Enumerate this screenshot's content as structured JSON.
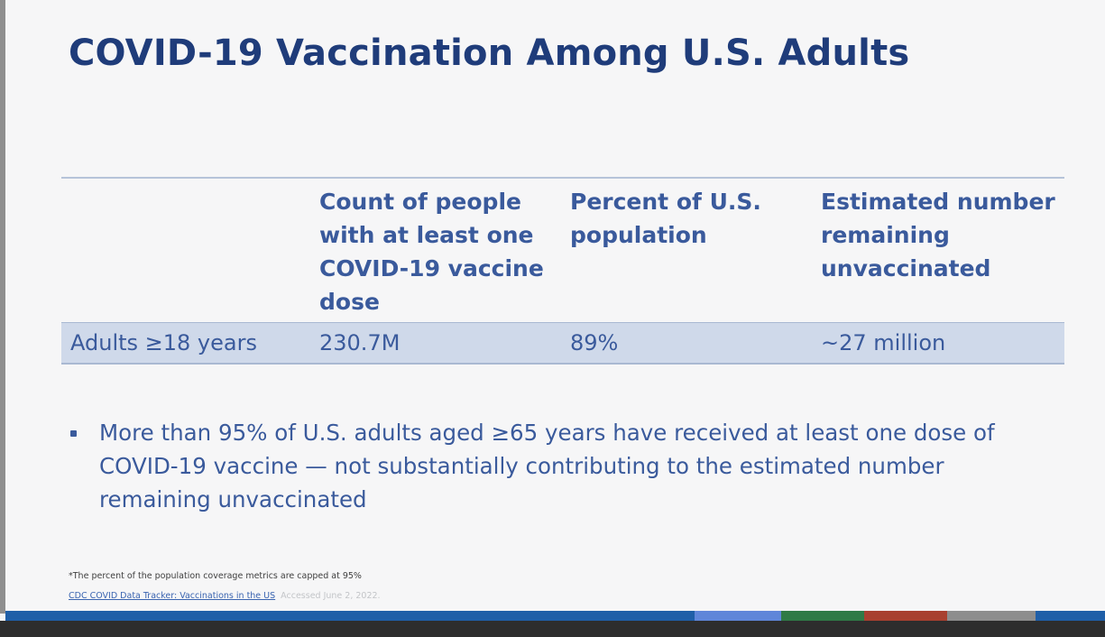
{
  "slide": {
    "title": "COVID-19 Vaccination Among U.S. Adults",
    "table": {
      "headers": [
        "Count of people with at least one COVID-19 vaccine dose",
        "Percent of U.S. population",
        "Estimated number remaining unvaccinated"
      ],
      "row": {
        "label": "Adults ≥18 years",
        "count": "230.7M",
        "percent": "89%",
        "remaining": "~27 million"
      }
    },
    "bullet": "More than 95% of U.S. adults aged ≥65 years have received at least one dose of COVID-19 vaccine — not substantially contributing to the estimated number remaining unvaccinated",
    "footnote": "*The percent of the population coverage metrics are capped at 95%",
    "source_link": "CDC COVID Data Tracker: Vaccinations in the US",
    "source_accessed": "Accessed June 2, 2022."
  },
  "colors": {
    "title": "#1f3c7a",
    "text": "#3a5a9c",
    "row_fill": "#cfd9ea",
    "accent_blue": "#1f5fa8",
    "accent_light_blue": "#5f86d9",
    "accent_green": "#2f7a46",
    "accent_red": "#a8402f",
    "accent_gray": "#8d8d8d"
  }
}
